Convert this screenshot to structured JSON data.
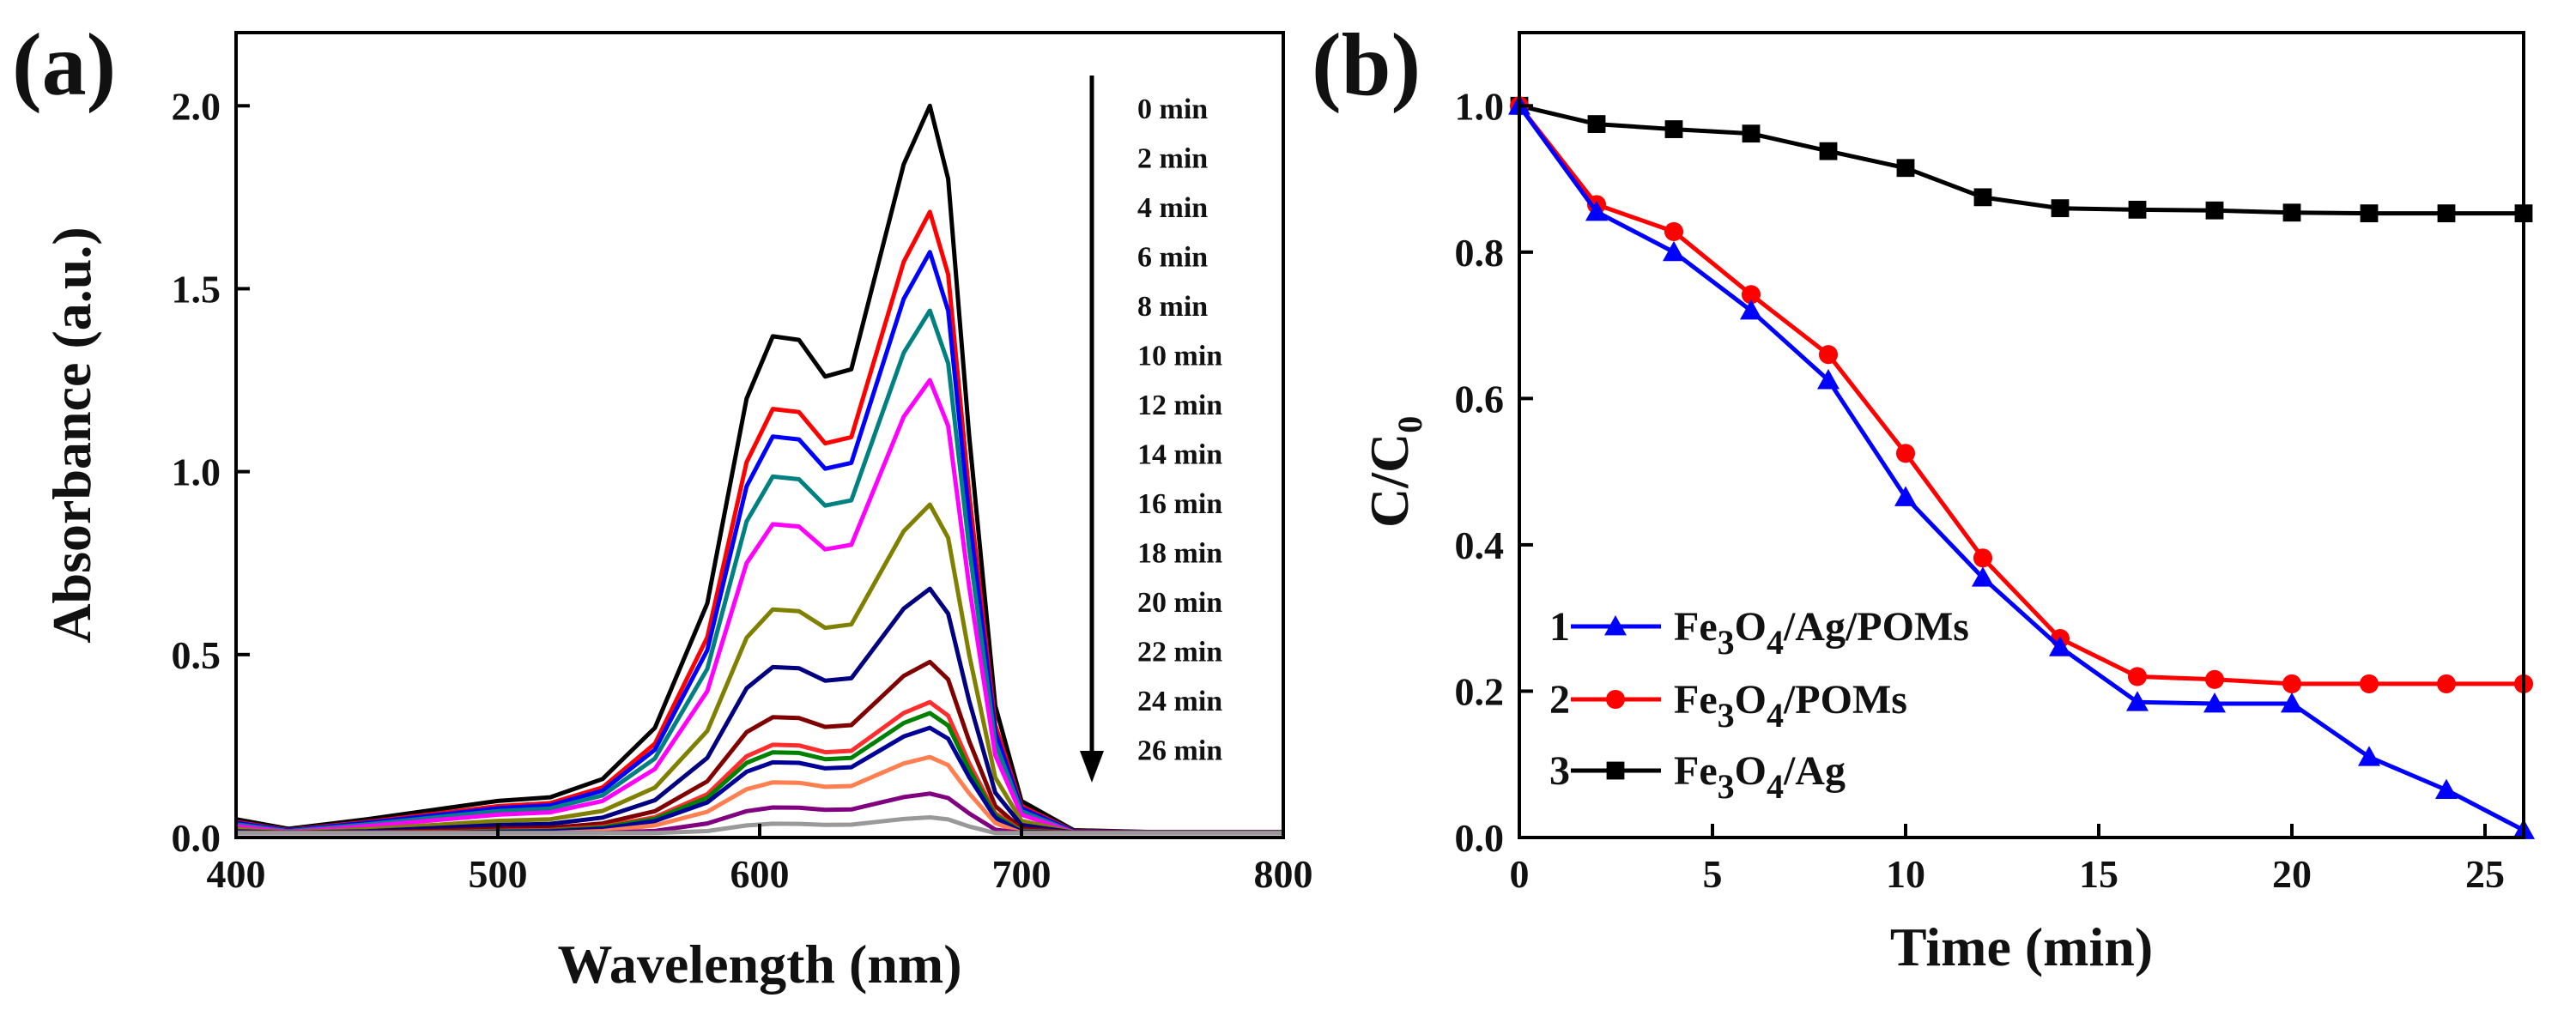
{
  "chart_data": [
    {
      "panel": "(a)",
      "type": "line",
      "xlabel": "Wavelength (nm)",
      "ylabel": "Absorbance (a.u.)",
      "xlim": [
        400,
        800
      ],
      "ylim": [
        0,
        2.2
      ],
      "xticks": [
        400,
        500,
        600,
        700,
        800
      ],
      "yticks": [
        0.0,
        0.5,
        1.0,
        1.5,
        2.0
      ],
      "ytick_labels": [
        "0.0",
        "0.5",
        "1.0",
        "1.5",
        "2.0"
      ],
      "annotation": "arrow pointing down (decreasing absorbance with time)",
      "x": [
        400,
        420,
        450,
        480,
        500,
        520,
        540,
        560,
        580,
        595,
        605,
        615,
        625,
        635,
        645,
        655,
        665,
        672,
        680,
        690,
        700,
        720,
        750,
        800
      ],
      "shape": [
        0.025,
        0.012,
        0.025,
        0.04,
        0.05,
        0.055,
        0.08,
        0.15,
        0.32,
        0.6,
        0.685,
        0.68,
        0.63,
        0.64,
        0.78,
        0.92,
        1.0,
        0.9,
        0.55,
        0.18,
        0.05,
        0.01,
        0.003,
        0.002
      ],
      "series": [
        {
          "name": "0 min",
          "peak": 2.0,
          "color": "#000000"
        },
        {
          "name": "2 min",
          "peak": 1.71,
          "color": "#ff0000"
        },
        {
          "name": "4 min",
          "peak": 1.6,
          "color": "#0000ff"
        },
        {
          "name": "6 min",
          "peak": 1.44,
          "color": "#008080"
        },
        {
          "name": "8 min",
          "peak": 1.25,
          "color": "#ff00ff"
        },
        {
          "name": "10 min",
          "peak": 0.91,
          "color": "#808000"
        },
        {
          "name": "12 min",
          "peak": 0.68,
          "color": "#000080"
        },
        {
          "name": "14 min",
          "peak": 0.48,
          "color": "#800000"
        },
        {
          "name": "16 min",
          "peak": 0.37,
          "color": "#ff2d2d"
        },
        {
          "name": "18 min",
          "peak": 0.34,
          "color": "#008000"
        },
        {
          "name": "20 min",
          "peak": 0.3,
          "color": "#000099"
        },
        {
          "name": "22 min",
          "peak": 0.22,
          "color": "#ff7f50"
        },
        {
          "name": "24 min",
          "peak": 0.12,
          "color": "#800080"
        },
        {
          "name": "26 min",
          "peak": 0.055,
          "color": "#999999"
        }
      ]
    },
    {
      "panel": "(b)",
      "type": "line",
      "xlabel": "Time (min)",
      "ylabel": "C/C0",
      "xlim": [
        0,
        26
      ],
      "ylim": [
        0,
        1.1
      ],
      "xticks": [
        0,
        5,
        10,
        15,
        20,
        25
      ],
      "yticks": [
        0.0,
        0.2,
        0.4,
        0.6,
        0.8,
        1.0
      ],
      "ytick_labels": [
        "0.0",
        "0.2",
        "0.4",
        "0.6",
        "0.8",
        "1.0"
      ],
      "x": [
        0,
        2,
        4,
        6,
        8,
        10,
        12,
        14,
        16,
        18,
        20,
        22,
        24,
        26
      ],
      "series": [
        {
          "num": "1",
          "name": "Fe3O4/Ag/POMs",
          "color": "#0000ff",
          "marker": "triangle",
          "values": [
            1.0,
            0.855,
            0.8,
            0.72,
            0.625,
            0.465,
            0.355,
            0.26,
            0.185,
            0.183,
            0.183,
            0.11,
            0.065,
            0.01
          ]
        },
        {
          "num": "2",
          "name": "Fe3O4/POMs",
          "color": "#ff0000",
          "marker": "circle",
          "values": [
            1.0,
            0.865,
            0.828,
            0.742,
            0.66,
            0.525,
            0.382,
            0.272,
            0.22,
            0.216,
            0.21,
            0.21,
            0.21,
            0.21
          ]
        },
        {
          "num": "3",
          "name": "Fe3O4/Ag",
          "color": "#000000",
          "marker": "square",
          "values": [
            1.0,
            0.975,
            0.968,
            0.962,
            0.938,
            0.915,
            0.875,
            0.86,
            0.858,
            0.857,
            0.854,
            0.853,
            0.853,
            0.853
          ]
        }
      ]
    }
  ]
}
